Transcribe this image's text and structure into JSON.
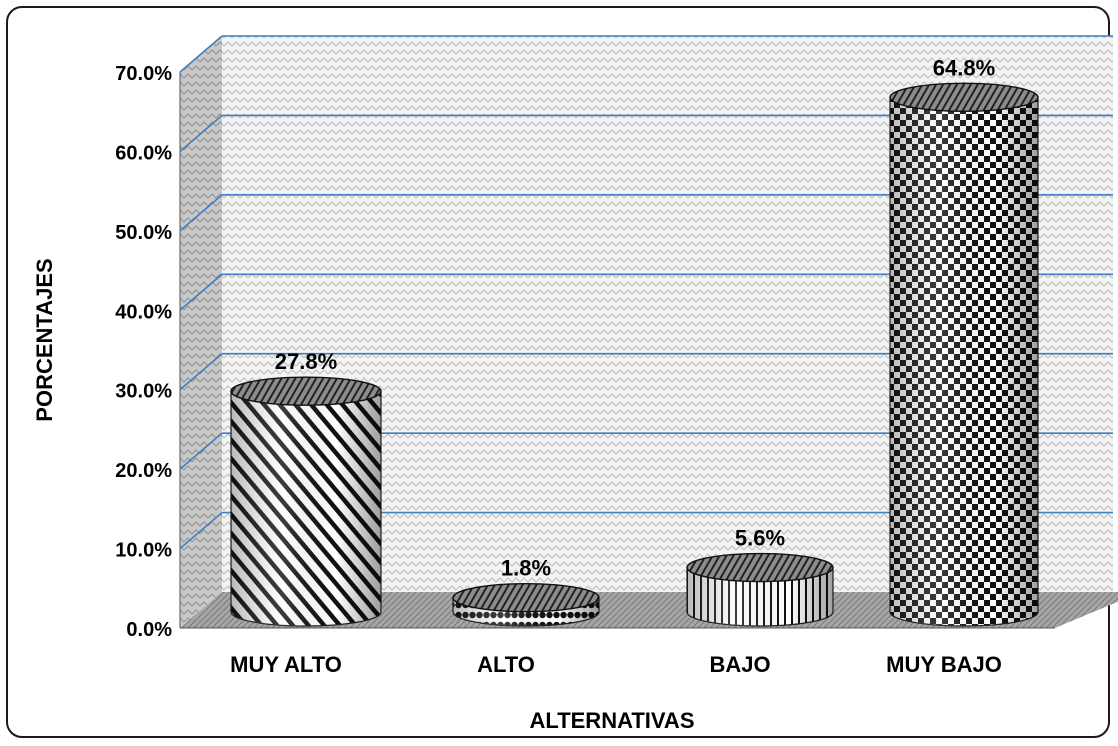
{
  "chart_data": {
    "type": "bar",
    "title": "",
    "xlabel": "ALTERNATIVAS",
    "ylabel": "PORCENTAJES",
    "categories": [
      "MUY ALTO",
      "ALTO",
      "BAJO",
      "MUY BAJO"
    ],
    "values": [
      27.8,
      1.8,
      5.6,
      64.8
    ],
    "value_labels": [
      "27.8%",
      "1.8%",
      "5.6%",
      "64.8%"
    ],
    "ylim": [
      0,
      70
    ],
    "yticks": [
      "0.0%",
      "10.0%",
      "20.0%",
      "30.0%",
      "40.0%",
      "50.0%",
      "60.0%",
      "70.0%"
    ],
    "grid": true,
    "style": "3d-cylinder",
    "colors": {
      "gridline": "#3f7fbf",
      "wall": "#e6e6e6",
      "floor": "#9a9a9a",
      "ink": "#000000"
    }
  }
}
